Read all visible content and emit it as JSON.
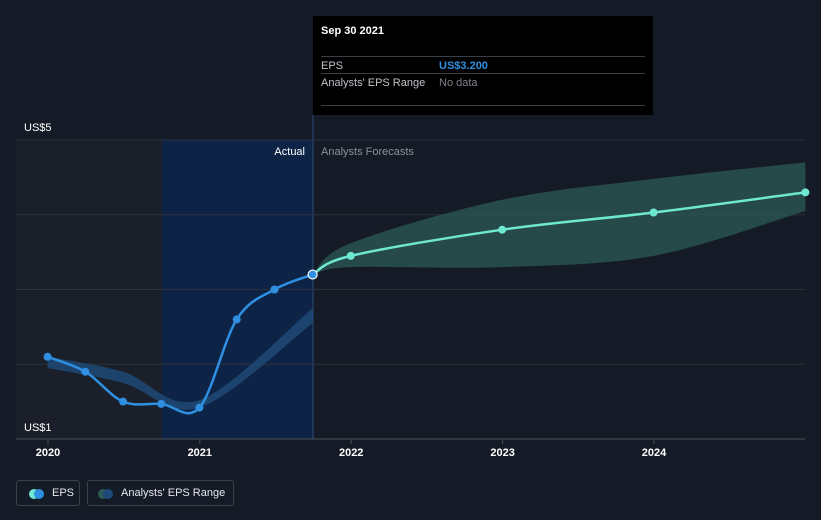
{
  "tooltip": {
    "date": "Sep 30 2021",
    "eps_label": "EPS",
    "eps_value": "US$3.200",
    "range_label": "Analysts' EPS Range",
    "range_value": "No data"
  },
  "regions": {
    "actual": "Actual",
    "forecast": "Analysts Forecasts"
  },
  "legend": {
    "eps": "EPS",
    "range": "Analysts' EPS Range"
  },
  "colors": {
    "background": "#151b26",
    "eps_actual": "#2f8fe0",
    "eps_forecast": "#6fe8d1",
    "range_past": "#1f4a77",
    "range_forecast": "#2c5a55",
    "highlight": "#0e2447"
  },
  "chart_data": {
    "type": "line",
    "y_unit_labels": [
      "US$5",
      "US$1"
    ],
    "ylim": [
      1,
      5
    ],
    "x_ticks": [
      "2020",
      "2021",
      "2022",
      "2023",
      "2024"
    ],
    "series": [
      {
        "name": "EPS",
        "x": [
          "2019-12-31",
          "2020-03-31",
          "2020-06-30",
          "2020-09-30",
          "2020-12-31",
          "2021-03-31",
          "2021-06-30",
          "2021-09-30"
        ],
        "values": [
          2.1,
          1.9,
          1.5,
          1.47,
          1.42,
          2.6,
          3.0,
          3.2
        ]
      },
      {
        "name": "EPS Forecast",
        "x": [
          "2021-09-30",
          "2021-12-31",
          "2022-12-31",
          "2023-12-31",
          "2024-12-31"
        ],
        "values": [
          3.2,
          3.45,
          3.8,
          4.03,
          4.3
        ]
      }
    ],
    "range": {
      "name": "Analysts' EPS Range",
      "past": {
        "x": [
          "2019-12-31",
          "2020-06-30",
          "2020-12-31",
          "2021-09-30"
        ],
        "low": [
          1.95,
          1.75,
          1.42,
          2.55
        ],
        "high": [
          2.1,
          1.9,
          1.52,
          2.75
        ]
      },
      "forecast": {
        "x": [
          "2021-09-30",
          "2021-12-31",
          "2022-12-31",
          "2023-12-31",
          "2024-12-31"
        ],
        "low": [
          3.2,
          3.3,
          3.3,
          3.45,
          4.05
        ],
        "high": [
          3.2,
          3.62,
          4.2,
          4.48,
          4.7
        ]
      }
    },
    "grid": true,
    "legend_position": "bottom-left"
  }
}
